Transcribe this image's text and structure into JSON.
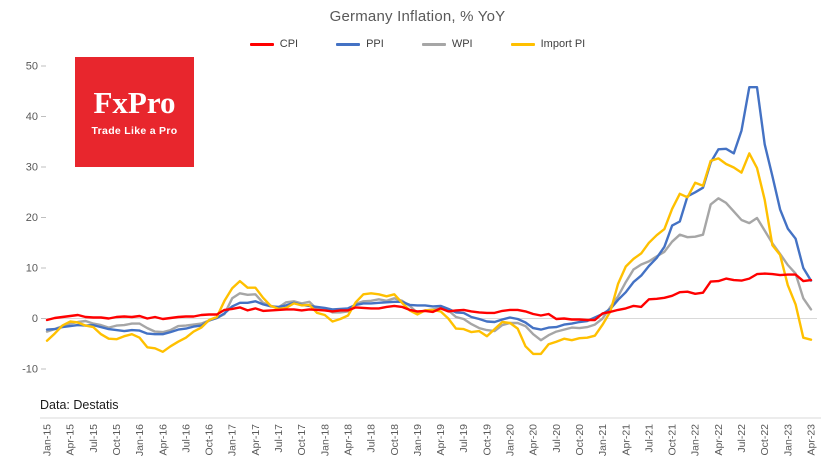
{
  "title": "Germany Inflation, % YoY",
  "source": "Data: Destatis",
  "logo": {
    "name": "FxPro",
    "tagline": "Trade Like a Pro",
    "bg_color": "#e8262d",
    "text_color": "#ffffff"
  },
  "chart_data": {
    "type": "line",
    "title": "Germany Inflation, % YoY",
    "ylabel": "",
    "xlabel": "",
    "ylim": [
      -10,
      50
    ],
    "yticks": [
      50,
      40,
      30,
      20,
      10,
      0,
      -10
    ],
    "grid": "zero-line-only",
    "legend_position": "top",
    "x_tick_interval_months": 3,
    "n_points": 100,
    "x_tick_labels": [
      "Jan-15",
      "Apr-15",
      "Jul-15",
      "Oct-15",
      "Jan-16",
      "Apr-16",
      "Jul-16",
      "Oct-16",
      "Jan-17",
      "Apr-17",
      "Jul-17",
      "Oct-17",
      "Jan-18",
      "Apr-18",
      "Jul-18",
      "Oct-18",
      "Jan-19",
      "Apr-19",
      "Jul-19",
      "Oct-19",
      "Jan-20",
      "Apr-20",
      "Jul-20",
      "Oct-20",
      "Jan-21",
      "Apr-21",
      "Jul-21",
      "Oct-21",
      "Jan-22",
      "Apr-22",
      "Jul-22",
      "Oct-22",
      "Jan-23",
      "Apr-23"
    ],
    "series": [
      {
        "name": "CPI",
        "color": "#ff0000",
        "values": [
          -0.3,
          0.1,
          0.3,
          0.5,
          0.7,
          0.3,
          0.2,
          0.2,
          0.0,
          0.3,
          0.4,
          0.3,
          0.5,
          0.0,
          0.3,
          -0.1,
          0.1,
          0.3,
          0.4,
          0.4,
          0.7,
          0.8,
          0.8,
          1.7,
          1.9,
          2.2,
          1.6,
          2.0,
          1.5,
          1.6,
          1.7,
          1.8,
          1.8,
          1.6,
          1.8,
          1.7,
          1.6,
          1.4,
          1.6,
          1.6,
          2.2,
          2.1,
          2.0,
          2.0,
          2.3,
          2.5,
          2.3,
          1.7,
          1.4,
          1.5,
          1.3,
          2.0,
          1.4,
          1.6,
          1.7,
          1.4,
          1.2,
          1.1,
          1.1,
          1.5,
          1.7,
          1.7,
          1.4,
          0.9,
          0.6,
          0.9,
          -0.1,
          0.0,
          -0.2,
          -0.2,
          -0.3,
          -0.3,
          1.0,
          1.3,
          1.7,
          2.0,
          2.5,
          2.3,
          3.8,
          3.9,
          4.1,
          4.5,
          5.2,
          5.3,
          4.9,
          5.1,
          7.3,
          7.4,
          7.9,
          7.6,
          7.5,
          7.9,
          8.8,
          8.9,
          8.8,
          8.6,
          8.7,
          8.7,
          7.4,
          7.6
        ]
      },
      {
        "name": "PPI",
        "color": "#4472c4",
        "values": [
          -2.2,
          -2.1,
          -1.7,
          -1.5,
          -1.3,
          -1.4,
          -1.3,
          -1.7,
          -2.1,
          -2.3,
          -2.5,
          -2.3,
          -2.4,
          -3.0,
          -3.1,
          -3.1,
          -2.7,
          -2.2,
          -2.0,
          -1.6,
          -1.4,
          -0.4,
          0.1,
          1.0,
          2.4,
          3.1,
          3.1,
          3.4,
          2.8,
          2.4,
          2.3,
          2.6,
          3.1,
          2.7,
          2.5,
          2.3,
          2.1,
          1.8,
          1.9,
          2.0,
          2.7,
          3.0,
          3.0,
          3.1,
          3.2,
          3.3,
          3.3,
          2.7,
          2.6,
          2.6,
          2.4,
          2.5,
          1.9,
          1.2,
          1.1,
          0.3,
          -0.1,
          -0.6,
          -0.7,
          -0.2,
          0.2,
          -0.1,
          -0.8,
          -1.9,
          -2.2,
          -1.8,
          -1.7,
          -1.2,
          -1.0,
          -0.7,
          -0.5,
          0.2,
          0.9,
          1.9,
          3.7,
          5.2,
          7.2,
          8.5,
          10.4,
          12.0,
          14.2,
          18.4,
          19.2,
          24.2,
          25.0,
          25.9,
          30.9,
          33.5,
          33.6,
          32.7,
          37.2,
          45.8,
          45.8,
          34.5,
          28.2,
          21.6,
          17.8,
          15.8,
          10.0,
          7.5
        ]
      },
      {
        "name": "WPI",
        "color": "#a6a6a6",
        "values": [
          -2.6,
          -2.1,
          -1.5,
          -1.0,
          -0.7,
          -0.5,
          -1.0,
          -1.3,
          -1.8,
          -1.4,
          -1.3,
          -1.0,
          -1.0,
          -1.9,
          -2.6,
          -2.7,
          -2.3,
          -1.5,
          -1.4,
          -1.2,
          -1.0,
          -0.4,
          0.1,
          0.9,
          4.0,
          5.0,
          4.7,
          4.8,
          3.1,
          2.5,
          2.2,
          3.2,
          3.4,
          3.0,
          3.3,
          1.8,
          2.0,
          1.2,
          1.2,
          1.4,
          2.9,
          3.4,
          3.5,
          3.8,
          3.5,
          4.0,
          3.5,
          2.5,
          1.1,
          1.6,
          1.8,
          2.1,
          1.6,
          0.3,
          -0.1,
          -1.1,
          -1.9,
          -2.3,
          -2.5,
          -1.3,
          -0.9,
          -0.9,
          -1.5,
          -3.1,
          -4.3,
          -3.3,
          -2.6,
          -2.2,
          -1.8,
          -1.9,
          -1.7,
          -1.2,
          0.0,
          2.3,
          4.4,
          7.2,
          9.7,
          10.7,
          11.3,
          12.3,
          13.2,
          15.2,
          16.6,
          16.1,
          16.2,
          16.6,
          22.6,
          23.8,
          22.9,
          21.2,
          19.5,
          18.9,
          19.9,
          17.4,
          14.9,
          12.8,
          10.6,
          8.9,
          4.0,
          1.8
        ]
      },
      {
        "name": "Import PI",
        "color": "#ffc000",
        "values": [
          -4.4,
          -3.0,
          -1.4,
          -0.6,
          -0.8,
          -1.4,
          -1.7,
          -3.1,
          -4.0,
          -4.1,
          -3.5,
          -3.1,
          -3.8,
          -5.7,
          -5.9,
          -6.6,
          -5.5,
          -4.6,
          -3.8,
          -2.6,
          -1.8,
          -0.3,
          0.3,
          3.5,
          6.0,
          7.4,
          6.1,
          6.1,
          4.1,
          2.5,
          1.9,
          2.1,
          3.0,
          2.6,
          2.7,
          1.1,
          0.7,
          -0.6,
          -0.1,
          0.6,
          3.2,
          4.8,
          5.0,
          4.8,
          4.4,
          4.8,
          3.1,
          1.6,
          0.8,
          1.6,
          1.7,
          1.4,
          0.0,
          -2.0,
          -2.1,
          -2.7,
          -2.5,
          -3.5,
          -2.1,
          -0.7,
          -0.9,
          -2.0,
          -5.5,
          -7.0,
          -7.0,
          -5.1,
          -4.6,
          -4.0,
          -4.3,
          -3.9,
          -3.8,
          -3.4,
          -1.2,
          1.4,
          6.9,
          10.3,
          11.8,
          12.9,
          15.0,
          16.5,
          17.7,
          21.7,
          24.7,
          24.0,
          26.9,
          26.3,
          31.2,
          31.7,
          30.6,
          29.9,
          28.9,
          32.7,
          29.8,
          23.5,
          14.5,
          12.6,
          6.6,
          2.8,
          -3.8,
          -4.2
        ]
      }
    ]
  }
}
